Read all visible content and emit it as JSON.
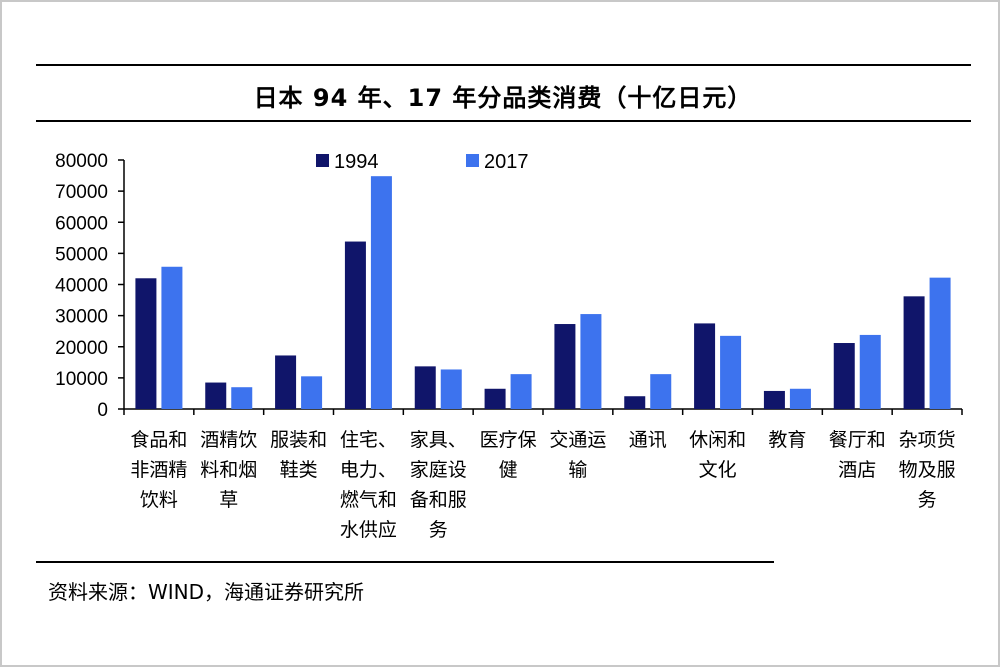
{
  "header": {
    "title": "日本 94 年、17 年分品类消费（十亿日元）"
  },
  "footer": {
    "source": "资料来源：WIND，海通证券研究所"
  },
  "colors": {
    "series_1994": "#10156a",
    "series_2017": "#3d73ee"
  },
  "chart_data": {
    "type": "bar",
    "title": "日本 94 年、17 年分品类消费（十亿日元）",
    "xlabel": "",
    "ylabel": "",
    "ylim": [
      0,
      80000
    ],
    "yticks": [
      0,
      10000,
      20000,
      30000,
      40000,
      50000,
      60000,
      70000,
      80000
    ],
    "grid": false,
    "legend_position": "top",
    "categories": [
      [
        "食品和",
        "非酒精",
        "饮料"
      ],
      [
        "酒精饮",
        "料和烟",
        "草"
      ],
      [
        "服装和",
        "鞋类"
      ],
      [
        "住宅、",
        "电力、",
        "燃气和",
        "水供应"
      ],
      [
        "家具、",
        "家庭设",
        "备和服",
        "务"
      ],
      [
        "医疗保",
        "健"
      ],
      [
        "交通运",
        "输"
      ],
      [
        "通讯"
      ],
      [
        "休闲和",
        "文化"
      ],
      [
        "教育"
      ],
      [
        "餐厅和",
        "酒店"
      ],
      [
        "杂项货",
        "物及服",
        "务"
      ]
    ],
    "series": [
      {
        "name": "1994",
        "values": [
          42000,
          8500,
          17200,
          53800,
          13700,
          6500,
          27300,
          4100,
          27500,
          5800,
          21200,
          36200
        ]
      },
      {
        "name": "2017",
        "values": [
          45700,
          7000,
          10500,
          74800,
          12700,
          11200,
          30500,
          11200,
          23500,
          6500,
          23800,
          42200
        ]
      }
    ]
  }
}
